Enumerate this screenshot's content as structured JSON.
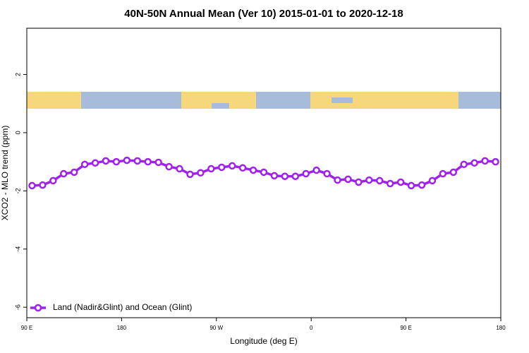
{
  "chart_data": {
    "type": "line",
    "title": "40N-50N Annual Mean (Ver 10)   2015-01-01 to 2020-12-18",
    "xlabel": "Longitude (deg E)",
    "ylabel": "XCO2 - MLO trend (ppm)",
    "x": [
      95,
      105,
      115,
      125,
      135,
      145,
      155,
      165,
      175,
      185,
      195,
      205,
      215,
      225,
      235,
      245,
      255,
      265,
      275,
      285,
      295,
      305,
      315,
      325,
      335,
      345,
      355,
      365,
      375,
      385,
      395,
      405,
      415,
      425,
      435,
      445,
      455,
      465,
      475,
      485,
      495,
      505,
      515,
      525,
      535
    ],
    "series": [
      {
        "name": "Land (Nadir&Glint) and Ocean (Glint)",
        "color": "#a020f0",
        "values": [
          -1.82,
          -1.8,
          -1.65,
          -1.41,
          -1.36,
          -1.09,
          -1.04,
          -0.97,
          -1.0,
          -0.95,
          -0.97,
          -1.0,
          -1.02,
          -1.17,
          -1.24,
          -1.43,
          -1.38,
          -1.24,
          -1.19,
          -1.14,
          -1.21,
          -1.29,
          -1.36,
          -1.48,
          -1.5,
          -1.5,
          -1.41,
          -1.29,
          -1.41,
          -1.63,
          -1.6,
          -1.7,
          -1.63,
          -1.65,
          -1.75,
          -1.7,
          -1.82,
          -1.8,
          -1.65,
          -1.41,
          -1.36,
          -1.09,
          -1.04,
          -0.97,
          -1.0
        ]
      }
    ],
    "xlim": [
      90,
      540
    ],
    "xticks": [
      {
        "value": 90,
        "label": "90 E"
      },
      180,
      {
        "value": 270,
        "label": "90 W"
      },
      {
        "value": 360,
        "label": "0"
      },
      {
        "value": 450,
        "label": "90 E"
      },
      {
        "value": 540,
        "label": "180"
      }
    ],
    "ylim": [
      -6.36,
      3.59
    ],
    "yticks": [
      -6,
      -4,
      -2,
      0,
      2
    ],
    "legend": "bottom-left"
  }
}
